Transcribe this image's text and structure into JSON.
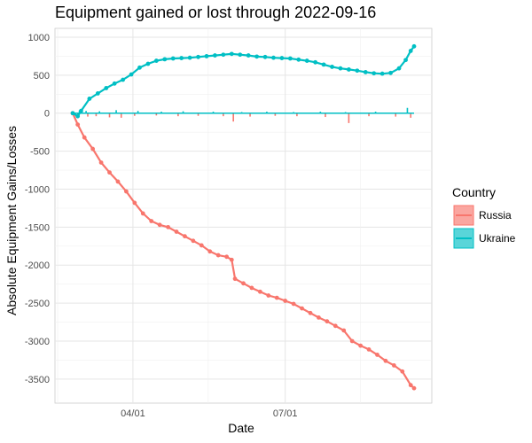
{
  "chart_data": {
    "type": "line",
    "title": "Equipment gained or lost through 2022-09-16",
    "xlabel": "Date",
    "ylabel": "Absolute Equipment Gains/Losses",
    "xlim": [
      "2022-02-24",
      "2022-09-16"
    ],
    "ylim": [
      -3700,
      1000
    ],
    "x_ticks": [
      "04/01",
      "07/01"
    ],
    "x_tick_dates": [
      "2022-04-01",
      "2022-07-01"
    ],
    "y_ticks": [
      1000,
      500,
      0,
      -500,
      -1000,
      -1500,
      -2000,
      -2500,
      -3000,
      -3500
    ],
    "grid": true,
    "legend": {
      "title": "Country",
      "position": "right",
      "entries": [
        {
          "name": "Russia",
          "color": "#F8766D"
        },
        {
          "name": "Ukraine",
          "color": "#00BFC4"
        }
      ]
    },
    "series": [
      {
        "name": "Russia",
        "color": "#F8766D",
        "cumulative": [
          [
            "2022-02-24",
            0
          ],
          [
            "2022-02-27",
            -150
          ],
          [
            "2022-03-03",
            -320
          ],
          [
            "2022-03-08",
            -470
          ],
          [
            "2022-03-13",
            -650
          ],
          [
            "2022-03-18",
            -780
          ],
          [
            "2022-03-23",
            -900
          ],
          [
            "2022-03-28",
            -1030
          ],
          [
            "2022-04-02",
            -1180
          ],
          [
            "2022-04-07",
            -1320
          ],
          [
            "2022-04-12",
            -1420
          ],
          [
            "2022-04-17",
            -1470
          ],
          [
            "2022-04-22",
            -1500
          ],
          [
            "2022-04-27",
            -1560
          ],
          [
            "2022-05-02",
            -1620
          ],
          [
            "2022-05-07",
            -1680
          ],
          [
            "2022-05-12",
            -1740
          ],
          [
            "2022-05-17",
            -1820
          ],
          [
            "2022-05-22",
            -1870
          ],
          [
            "2022-05-27",
            -1890
          ],
          [
            "2022-05-30",
            -1930
          ],
          [
            "2022-06-01",
            -2180
          ],
          [
            "2022-06-06",
            -2240
          ],
          [
            "2022-06-11",
            -2300
          ],
          [
            "2022-06-16",
            -2350
          ],
          [
            "2022-06-21",
            -2400
          ],
          [
            "2022-06-26",
            -2430
          ],
          [
            "2022-07-01",
            -2470
          ],
          [
            "2022-07-06",
            -2510
          ],
          [
            "2022-07-11",
            -2570
          ],
          [
            "2022-07-16",
            -2630
          ],
          [
            "2022-07-21",
            -2690
          ],
          [
            "2022-07-26",
            -2740
          ],
          [
            "2022-07-31",
            -2800
          ],
          [
            "2022-08-05",
            -2860
          ],
          [
            "2022-08-10",
            -3000
          ],
          [
            "2022-08-15",
            -3060
          ],
          [
            "2022-08-20",
            -3110
          ],
          [
            "2022-08-25",
            -3180
          ],
          [
            "2022-08-30",
            -3260
          ],
          [
            "2022-09-04",
            -3320
          ],
          [
            "2022-09-09",
            -3400
          ],
          [
            "2022-09-14",
            -3580
          ],
          [
            "2022-09-16",
            -3620
          ]
        ],
        "daily": [
          [
            "2022-02-27",
            -30
          ],
          [
            "2022-03-05",
            -45
          ],
          [
            "2022-03-10",
            -40
          ],
          [
            "2022-03-18",
            -55
          ],
          [
            "2022-03-25",
            -60
          ],
          [
            "2022-04-02",
            -35
          ],
          [
            "2022-04-15",
            -30
          ],
          [
            "2022-04-28",
            -40
          ],
          [
            "2022-05-10",
            -35
          ],
          [
            "2022-05-25",
            -40
          ],
          [
            "2022-05-31",
            -110
          ],
          [
            "2022-06-10",
            -45
          ],
          [
            "2022-06-25",
            -35
          ],
          [
            "2022-07-08",
            -40
          ],
          [
            "2022-07-25",
            -50
          ],
          [
            "2022-08-08",
            -130
          ],
          [
            "2022-08-20",
            -40
          ],
          [
            "2022-09-05",
            -45
          ],
          [
            "2022-09-14",
            -60
          ]
        ]
      },
      {
        "name": "Ukraine",
        "color": "#00BFC4",
        "cumulative": [
          [
            "2022-02-24",
            0
          ],
          [
            "2022-02-27",
            -40
          ],
          [
            "2022-03-01",
            30
          ],
          [
            "2022-03-06",
            190
          ],
          [
            "2022-03-11",
            260
          ],
          [
            "2022-03-16",
            330
          ],
          [
            "2022-03-21",
            390
          ],
          [
            "2022-03-26",
            440
          ],
          [
            "2022-03-31",
            510
          ],
          [
            "2022-04-05",
            600
          ],
          [
            "2022-04-10",
            650
          ],
          [
            "2022-04-15",
            690
          ],
          [
            "2022-04-20",
            710
          ],
          [
            "2022-04-25",
            720
          ],
          [
            "2022-04-30",
            725
          ],
          [
            "2022-05-05",
            730
          ],
          [
            "2022-05-10",
            740
          ],
          [
            "2022-05-15",
            750
          ],
          [
            "2022-05-20",
            760
          ],
          [
            "2022-05-25",
            770
          ],
          [
            "2022-05-30",
            780
          ],
          [
            "2022-06-04",
            770
          ],
          [
            "2022-06-09",
            760
          ],
          [
            "2022-06-14",
            745
          ],
          [
            "2022-06-19",
            740
          ],
          [
            "2022-06-24",
            730
          ],
          [
            "2022-06-29",
            725
          ],
          [
            "2022-07-04",
            720
          ],
          [
            "2022-07-09",
            705
          ],
          [
            "2022-07-14",
            690
          ],
          [
            "2022-07-19",
            670
          ],
          [
            "2022-07-24",
            640
          ],
          [
            "2022-07-29",
            610
          ],
          [
            "2022-08-03",
            590
          ],
          [
            "2022-08-08",
            575
          ],
          [
            "2022-08-13",
            560
          ],
          [
            "2022-08-18",
            540
          ],
          [
            "2022-08-23",
            525
          ],
          [
            "2022-08-28",
            520
          ],
          [
            "2022-09-02",
            530
          ],
          [
            "2022-09-07",
            590
          ],
          [
            "2022-09-11",
            700
          ],
          [
            "2022-09-14",
            820
          ],
          [
            "2022-09-16",
            880
          ]
        ],
        "daily": [
          [
            "2022-02-28",
            35
          ],
          [
            "2022-03-04",
            30
          ],
          [
            "2022-03-12",
            25
          ],
          [
            "2022-03-22",
            40
          ],
          [
            "2022-04-04",
            30
          ],
          [
            "2022-04-18",
            20
          ],
          [
            "2022-05-01",
            25
          ],
          [
            "2022-05-19",
            20
          ],
          [
            "2022-06-05",
            15
          ],
          [
            "2022-06-20",
            20
          ],
          [
            "2022-07-06",
            15
          ],
          [
            "2022-07-22",
            20
          ],
          [
            "2022-08-06",
            15
          ],
          [
            "2022-08-24",
            20
          ],
          [
            "2022-09-12",
            70
          ]
        ]
      }
    ]
  }
}
